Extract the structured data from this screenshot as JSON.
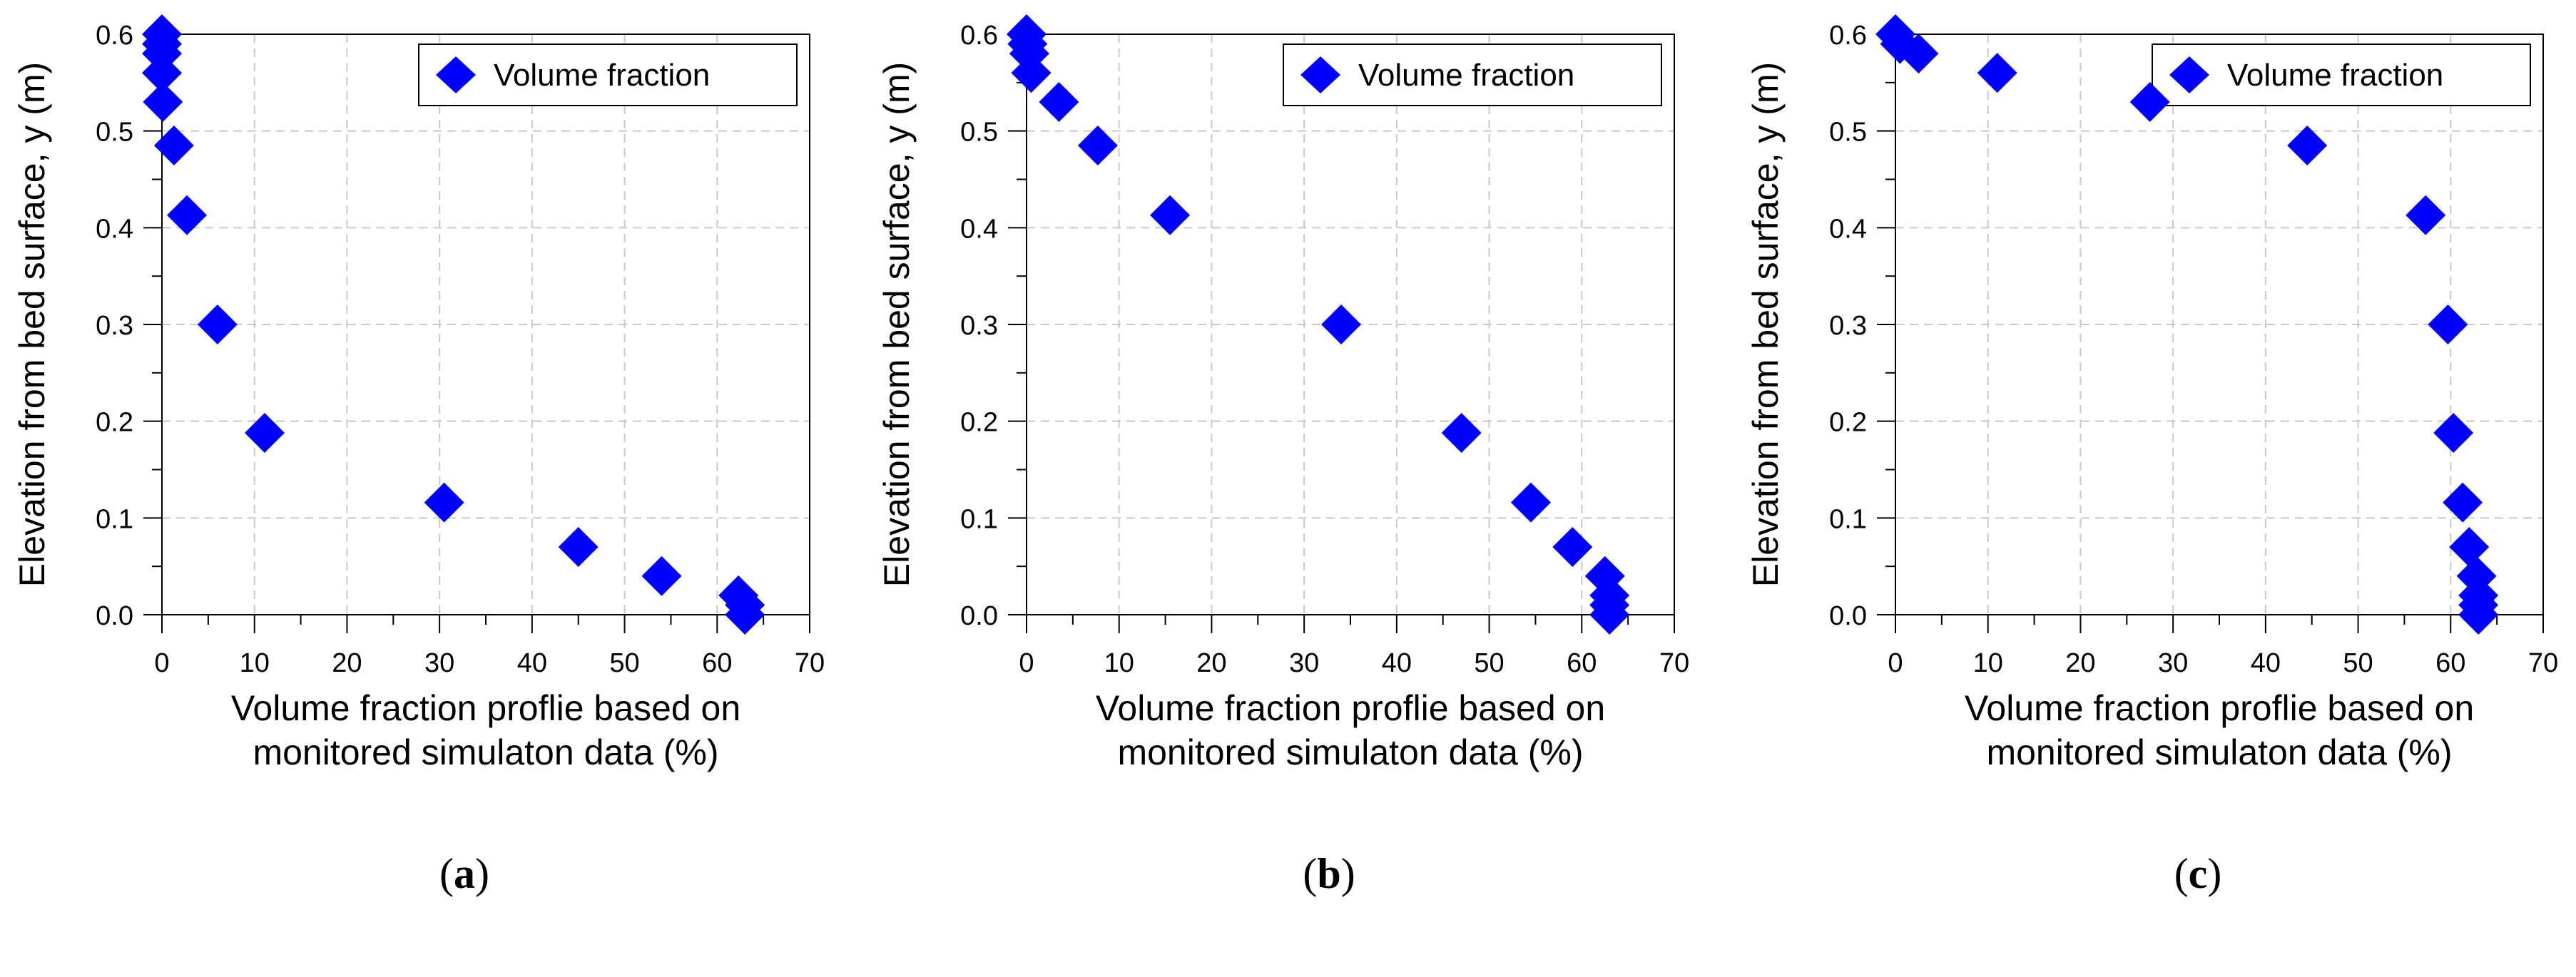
{
  "chart_data": [
    {
      "type": "scatter",
      "panel_label": "a",
      "caption": [
        "(",
        "a",
        ")"
      ],
      "xlabel": [
        "Volume fraction proflie based on",
        "monitored simulaton data (%)"
      ],
      "ylabel": "Elevation from bed surface, y (m)",
      "xlim": [
        0,
        70
      ],
      "ylim": [
        0,
        0.6
      ],
      "xticks": [
        "0",
        "10",
        "20",
        "30",
        "40",
        "50",
        "60",
        "70"
      ],
      "yticks": [
        "0.0",
        "0.1",
        "0.2",
        "0.3",
        "0.4",
        "0.5",
        "0.6"
      ],
      "grid": true,
      "legend": {
        "label": "Volume fraction",
        "placement": "top-right"
      },
      "marker_color": "#0000FF",
      "series": [
        {
          "name": "Volume fraction",
          "x": [
            0,
            0,
            0,
            0,
            0.1,
            1.3,
            2.7,
            6.0,
            11.1,
            30.5,
            45.0,
            54.0,
            62.3,
            63.0,
            63.0
          ],
          "y": [
            0.6,
            0.59,
            0.58,
            0.56,
            0.53,
            0.485,
            0.413,
            0.3,
            0.188,
            0.116,
            0.07,
            0.04,
            0.02,
            0.01,
            0.0
          ]
        }
      ]
    },
    {
      "type": "scatter",
      "panel_label": "b",
      "caption": [
        "(",
        "b",
        ")"
      ],
      "xlabel": [
        "Volume fraction proflie based on",
        "monitored simulaton data (%)"
      ],
      "ylabel": "Elevation from bed surface, y (m)",
      "xlim": [
        0,
        70
      ],
      "ylim": [
        0,
        0.6
      ],
      "xticks": [
        "0",
        "10",
        "20",
        "30",
        "40",
        "50",
        "60",
        "70"
      ],
      "yticks": [
        "0.0",
        "0.1",
        "0.2",
        "0.3",
        "0.4",
        "0.5",
        "0.6"
      ],
      "grid": true,
      "legend": {
        "label": "Volume fraction",
        "placement": "top-right"
      },
      "marker_color": "#0000FF",
      "series": [
        {
          "name": "Volume fraction",
          "x": [
            0,
            0.1,
            0.3,
            0.5,
            3.5,
            7.7,
            15.5,
            34.0,
            47.0,
            54.5,
            59.0,
            62.5,
            63.0,
            63.0,
            63.0
          ],
          "y": [
            0.6,
            0.59,
            0.58,
            0.56,
            0.53,
            0.485,
            0.413,
            0.3,
            0.188,
            0.116,
            0.07,
            0.04,
            0.02,
            0.01,
            0.0
          ]
        }
      ]
    },
    {
      "type": "scatter",
      "panel_label": "c",
      "caption": [
        "(",
        "c",
        ")"
      ],
      "xlabel": [
        "Volume fraction proflie based on",
        "monitored simulaton data (%)"
      ],
      "ylabel": "Elevation from bed surface, y (m)",
      "xlim": [
        0,
        70
      ],
      "ylim": [
        0,
        0.6
      ],
      "xticks": [
        "0",
        "10",
        "20",
        "30",
        "40",
        "50",
        "60",
        "70"
      ],
      "yticks": [
        "0.0",
        "0.1",
        "0.2",
        "0.3",
        "0.4",
        "0.5",
        "0.6"
      ],
      "grid": true,
      "legend": {
        "label": "Volume fraction",
        "placement": "top-right"
      },
      "marker_color": "#0000FF",
      "series": [
        {
          "name": "Volume fraction",
          "x": [
            0,
            0.5,
            2.5,
            11.0,
            27.5,
            44.5,
            57.3,
            59.7,
            60.3,
            61.3,
            62.0,
            62.8,
            63.0,
            63.0,
            63.0
          ],
          "y": [
            0.6,
            0.59,
            0.58,
            0.56,
            0.53,
            0.485,
            0.413,
            0.3,
            0.188,
            0.116,
            0.07,
            0.04,
            0.02,
            0.01,
            0.0
          ]
        }
      ]
    }
  ]
}
